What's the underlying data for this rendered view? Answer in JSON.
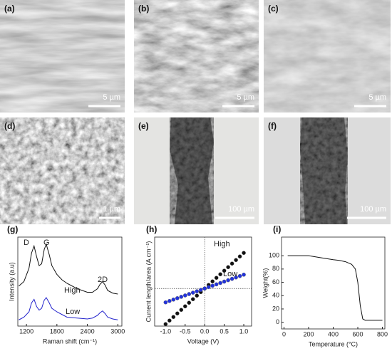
{
  "image_panels": [
    {
      "label": "(a)",
      "scale_bar": "5 µm"
    },
    {
      "label": "(b)",
      "scale_bar": "5 µm"
    },
    {
      "label": "(c)",
      "scale_bar": "5 µm"
    },
    {
      "label": "(d)",
      "scale_bar": "1 µm"
    },
    {
      "label": "(e)",
      "scale_bar": "100 µm"
    },
    {
      "label": "(f)",
      "scale_bar": "100 µm"
    }
  ],
  "chart_data": [
    {
      "type": "line",
      "label": "(g)",
      "x_label": "Raman shift (cm⁻¹)",
      "y_label": "Intensity (a.u)",
      "x": [
        1050,
        1150,
        1250,
        1300,
        1350,
        1400,
        1450,
        1500,
        1550,
        1590,
        1650,
        1700,
        1800,
        1900,
        2000,
        2200,
        2400,
        2500,
        2600,
        2650,
        2700,
        2750,
        2800,
        2900,
        3000
      ],
      "series": [
        {
          "name": "High",
          "color": "#111111",
          "values": [
            4.5,
            5.0,
            6.5,
            8.2,
            9.0,
            7.8,
            6.8,
            7.0,
            8.6,
            9.2,
            8.0,
            6.8,
            5.8,
            5.2,
            4.8,
            4.2,
            3.8,
            3.8,
            4.2,
            4.7,
            5.0,
            4.6,
            4.0,
            3.7,
            3.6
          ]
        },
        {
          "name": "Low",
          "color": "#2222cc",
          "values": [
            0.7,
            1.0,
            1.6,
            2.6,
            3.0,
            2.2,
            1.8,
            2.0,
            2.9,
            3.2,
            2.6,
            2.0,
            1.6,
            1.3,
            1.0,
            0.9,
            0.8,
            0.9,
            1.2,
            1.5,
            1.7,
            1.4,
            1.0,
            0.8,
            0.7
          ]
        }
      ],
      "annotations": [
        "D",
        "G",
        "2D",
        "High",
        "Low"
      ],
      "xlim": [
        1030,
        3080
      ],
      "ylim": [
        0,
        10
      ],
      "xticks": [
        1200,
        1800,
        2400,
        3000
      ]
    },
    {
      "type": "scatter",
      "label": "(h)",
      "x_label": "Voltage (V)",
      "y_label": "Current length/area (A cm⁻¹)",
      "x": [
        -1.0,
        -0.9,
        -0.8,
        -0.7,
        -0.6,
        -0.5,
        -0.4,
        -0.3,
        -0.2,
        -0.1,
        0.0,
        0.1,
        0.2,
        0.3,
        0.4,
        0.5,
        0.6,
        0.7,
        0.8,
        0.9,
        1.0
      ],
      "series": [
        {
          "name": "High",
          "color": "#111111",
          "values": [
            -9.0,
            -8.1,
            -7.2,
            -6.3,
            -5.4,
            -4.5,
            -3.6,
            -2.7,
            -1.8,
            -0.9,
            0.0,
            0.9,
            1.8,
            2.7,
            3.6,
            4.5,
            5.4,
            6.3,
            7.2,
            8.1,
            9.0
          ]
        },
        {
          "name": "Low",
          "color": "#2233dd",
          "values": [
            -3.5,
            -3.15,
            -2.8,
            -2.45,
            -2.1,
            -1.75,
            -1.4,
            -1.05,
            -0.7,
            -0.35,
            0.0,
            0.35,
            0.7,
            1.05,
            1.4,
            1.75,
            2.1,
            2.45,
            2.8,
            3.15,
            3.5
          ]
        }
      ],
      "annotations": [
        "High",
        "Low"
      ],
      "xlim": [
        -1.28,
        1.2
      ],
      "ylim": [
        -9.5,
        13
      ],
      "xticks": [
        {
          "value": -1.0,
          "label": "-1.0"
        },
        {
          "value": -0.5,
          "label": "-0.5"
        },
        {
          "value": 0.0,
          "label": "0.0"
        },
        {
          "value": 0.5,
          "label": "0.5"
        },
        {
          "value": 1.0,
          "label": "1.0"
        }
      ]
    },
    {
      "type": "line",
      "label": "(i)",
      "x_label": "Temperature (°C)",
      "y_label": "Weight(%)",
      "x": [
        30,
        100,
        200,
        300,
        400,
        450,
        500,
        550,
        580,
        600,
        620,
        640,
        660,
        700,
        800
      ],
      "series": [
        {
          "name": "Weight",
          "color": "#111111",
          "values": [
            100,
            100,
            100,
            97,
            94,
            93,
            91,
            87,
            80,
            60,
            25,
            5,
            3,
            3,
            3
          ]
        }
      ],
      "xlim": [
        -20,
        820
      ],
      "ylim": [
        -10,
        128
      ],
      "xticks": [
        0,
        200,
        400,
        600,
        800
      ],
      "yticks": [
        0,
        20,
        40,
        60,
        80,
        100
      ]
    }
  ]
}
